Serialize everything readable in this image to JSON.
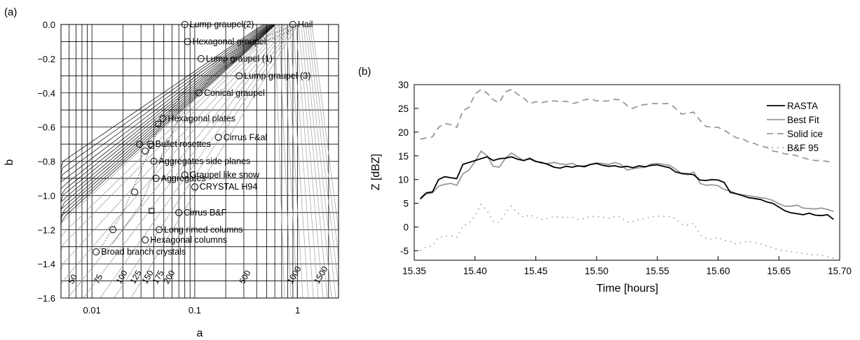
{
  "chart_data": [
    {
      "type": "scatter",
      "panel_label": "(a)",
      "xlabel": "a",
      "ylabel": "b",
      "xscale": "log",
      "xlim": [
        0.005,
        2.5
      ],
      "ylim": [
        -1.6,
        0.0
      ],
      "x_ticks": [
        {
          "value": 0.01,
          "label": "0.01"
        },
        {
          "value": 0.1,
          "label": "0.1"
        },
        {
          "value": 1,
          "label": "1"
        }
      ],
      "y_ticks": [
        {
          "value": 0.0,
          "label": "0.0"
        },
        {
          "value": -0.2,
          "label": "−0.2"
        },
        {
          "value": -0.4,
          "label": "−0.4"
        },
        {
          "value": -0.6,
          "label": "−0.6"
        },
        {
          "value": -0.8,
          "label": "−0.8"
        },
        {
          "value": -1.0,
          "label": "−1.0"
        },
        {
          "value": -1.2,
          "label": "−1.2"
        },
        {
          "value": -1.4,
          "label": "−1.4"
        },
        {
          "value": -1.6,
          "label": "−1.6"
        }
      ],
      "grid": true,
      "points": [
        {
          "a": 0.08,
          "b": 0.0,
          "label": "Lump graupel(2)"
        },
        {
          "a": 0.9,
          "b": 0.0,
          "label": "Hail"
        },
        {
          "a": 0.085,
          "b": -0.1,
          "label": "Hexagonal graupel"
        },
        {
          "a": 0.115,
          "b": -0.2,
          "label": "Lump graupel (1)"
        },
        {
          "a": 0.27,
          "b": -0.3,
          "label": "Lump graupel (3)"
        },
        {
          "a": 0.11,
          "b": -0.4,
          "label": "Conical graupel"
        },
        {
          "a": 0.049,
          "b": -0.55,
          "label": "Hexagonal plates"
        },
        {
          "a": 0.17,
          "b": -0.66,
          "label": "Cirrus F&al"
        },
        {
          "a": 0.037,
          "b": -0.7,
          "label": "Bullet rosettes"
        },
        {
          "a": 0.04,
          "b": -0.8,
          "label": "Aggregates side planes"
        },
        {
          "a": 0.042,
          "b": -0.9,
          "label": "Aggregates"
        },
        {
          "a": 0.08,
          "b": -0.88,
          "label": "Graupel like snow"
        },
        {
          "a": 0.1,
          "b": -0.95,
          "label": "CRYSTAL H94"
        },
        {
          "a": 0.07,
          "b": -1.1,
          "label": "Cirrus B&F"
        },
        {
          "a": 0.045,
          "b": -1.2,
          "label": "Long rimed columns"
        },
        {
          "a": 0.033,
          "b": -1.26,
          "label": "Hexagonal columns"
        },
        {
          "a": 0.011,
          "b": -1.33,
          "label": "Broad branch crystals"
        },
        {
          "a": 0.029,
          "b": -0.7,
          "label": ""
        },
        {
          "a": 0.033,
          "b": -0.74,
          "label": ""
        },
        {
          "a": 0.026,
          "b": -0.98,
          "label": ""
        },
        {
          "a": 0.016,
          "b": -1.2,
          "label": ""
        }
      ],
      "square_markers": [
        {
          "a": 0.044,
          "b": -0.58
        },
        {
          "a": 0.038,
          "b": -0.71
        },
        {
          "a": 0.038,
          "b": -1.09
        }
      ],
      "isoline_labels": [
        "50",
        "75",
        "100",
        "125",
        "150",
        "175",
        "200",
        "500",
        "1000",
        "1500"
      ]
    },
    {
      "type": "line",
      "panel_label": "(b)",
      "xlabel": "Time [hours]",
      "ylabel": "Z [dBZ]",
      "xlim": [
        15.35,
        15.7
      ],
      "ylim": [
        -7,
        30
      ],
      "x_ticks": [
        "15.35",
        "15.40",
        "15.45",
        "15.50",
        "15.55",
        "15.60",
        "15.65",
        "15.70"
      ],
      "y_ticks": [
        "-5",
        "0",
        "5",
        "10",
        "15",
        "20",
        "25",
        "30"
      ],
      "legend_position": "top-right",
      "x": [
        15.355,
        15.36,
        15.365,
        15.37,
        15.375,
        15.38,
        15.385,
        15.39,
        15.395,
        15.4,
        15.405,
        15.41,
        15.415,
        15.42,
        15.425,
        15.43,
        15.435,
        15.44,
        15.445,
        15.45,
        15.455,
        15.46,
        15.465,
        15.47,
        15.475,
        15.48,
        15.485,
        15.49,
        15.495,
        15.5,
        15.505,
        15.51,
        15.515,
        15.52,
        15.525,
        15.53,
        15.535,
        15.54,
        15.545,
        15.55,
        15.555,
        15.56,
        15.565,
        15.57,
        15.575,
        15.58,
        15.585,
        15.59,
        15.595,
        15.6,
        15.605,
        15.61,
        15.615,
        15.62,
        15.625,
        15.63,
        15.635,
        15.64,
        15.645,
        15.65,
        15.655,
        15.66,
        15.665,
        15.67,
        15.675,
        15.68,
        15.685,
        15.69,
        15.695
      ],
      "series": [
        {
          "name": "RASTA",
          "color": "#000000",
          "dash": "solid",
          "values": [
            6.0,
            7.2,
            7.4,
            10.0,
            10.6,
            10.4,
            10.2,
            13.2,
            13.6,
            14.0,
            14.4,
            14.8,
            14.0,
            14.4,
            14.5,
            14.8,
            14.3,
            14.0,
            14.4,
            13.8,
            13.6,
            13.2,
            12.6,
            12.4,
            12.8,
            12.6,
            12.9,
            12.7,
            13.2,
            13.4,
            13.0,
            12.8,
            12.9,
            12.6,
            12.8,
            12.5,
            12.9,
            12.7,
            13.0,
            13.1,
            12.8,
            12.5,
            11.6,
            11.3,
            11.2,
            11.0,
            9.9,
            9.8,
            10.0,
            9.9,
            9.4,
            7.3,
            7.0,
            6.6,
            6.2,
            6.0,
            5.8,
            5.3,
            5.0,
            4.2,
            3.4,
            3.0,
            2.8,
            2.6,
            2.9,
            2.5,
            2.4,
            2.6,
            1.6
          ]
        },
        {
          "name": "Best Fit",
          "color": "#999999",
          "dash": "solid",
          "values": [
            5.8,
            7.0,
            7.2,
            8.6,
            9.0,
            9.2,
            8.8,
            11.2,
            12.0,
            13.8,
            16.0,
            15.0,
            12.8,
            12.6,
            14.5,
            15.6,
            14.8,
            14.0,
            14.6,
            13.9,
            13.4,
            13.4,
            13.6,
            13.3,
            13.2,
            13.4,
            12.8,
            12.9,
            13.2,
            13.5,
            13.4,
            13.2,
            13.6,
            13.2,
            12.0,
            12.3,
            12.5,
            12.6,
            13.3,
            13.4,
            13.2,
            13.0,
            12.2,
            11.2,
            11.0,
            11.6,
            9.2,
            8.8,
            8.9,
            8.7,
            7.9,
            7.6,
            7.0,
            6.8,
            6.6,
            6.4,
            6.2,
            6.0,
            5.6,
            4.9,
            4.4,
            4.4,
            4.6,
            4.0,
            3.9,
            3.8,
            4.0,
            3.7,
            3.3
          ]
        },
        {
          "name": "Solid ice",
          "color": "#999999",
          "dash": "dashed",
          "values": [
            18.5,
            18.8,
            19.0,
            21.0,
            21.8,
            21.6,
            21.0,
            24.5,
            25.2,
            28.0,
            29.0,
            28.2,
            26.8,
            26.2,
            28.5,
            29.0,
            28.0,
            27.2,
            26.0,
            26.4,
            26.2,
            26.5,
            26.6,
            26.4,
            26.5,
            26.0,
            26.3,
            26.8,
            27.0,
            26.6,
            26.5,
            26.6,
            26.9,
            26.8,
            25.6,
            25.0,
            25.6,
            25.8,
            26.0,
            26.0,
            26.0,
            26.0,
            25.0,
            23.8,
            24.0,
            24.2,
            22.5,
            21.2,
            21.0,
            21.0,
            20.4,
            19.6,
            18.8,
            18.6,
            17.9,
            17.6,
            17.0,
            16.8,
            16.0,
            15.8,
            15.4,
            15.3,
            15.0,
            14.6,
            14.2,
            14.0,
            14.0,
            13.8,
            13.6
          ]
        },
        {
          "name": "B&F 95",
          "color": "#999999",
          "dash": "dotted",
          "values": [
            -5.0,
            -4.2,
            -4.0,
            -2.2,
            -2.0,
            -1.8,
            -2.2,
            0.2,
            0.8,
            2.4,
            4.8,
            3.4,
            1.2,
            1.0,
            3.0,
            4.4,
            3.0,
            2.0,
            2.6,
            2.0,
            1.6,
            1.8,
            2.2,
            2.0,
            2.1,
            2.0,
            1.6,
            1.8,
            2.3,
            2.2,
            2.0,
            1.9,
            2.2,
            2.1,
            1.0,
            1.2,
            1.6,
            1.8,
            2.2,
            2.3,
            2.2,
            2.2,
            1.8,
            0.6,
            0.4,
            0.8,
            -1.6,
            -2.4,
            -2.6,
            -2.2,
            -2.8,
            -3.0,
            -3.6,
            -3.2,
            -3.0,
            -3.3,
            -3.6,
            -4.0,
            -4.4,
            -4.8,
            -5.0,
            -5.2,
            -5.4,
            -5.6,
            -5.8,
            -5.8,
            -6.0,
            -6.2,
            -6.6
          ]
        }
      ]
    }
  ]
}
